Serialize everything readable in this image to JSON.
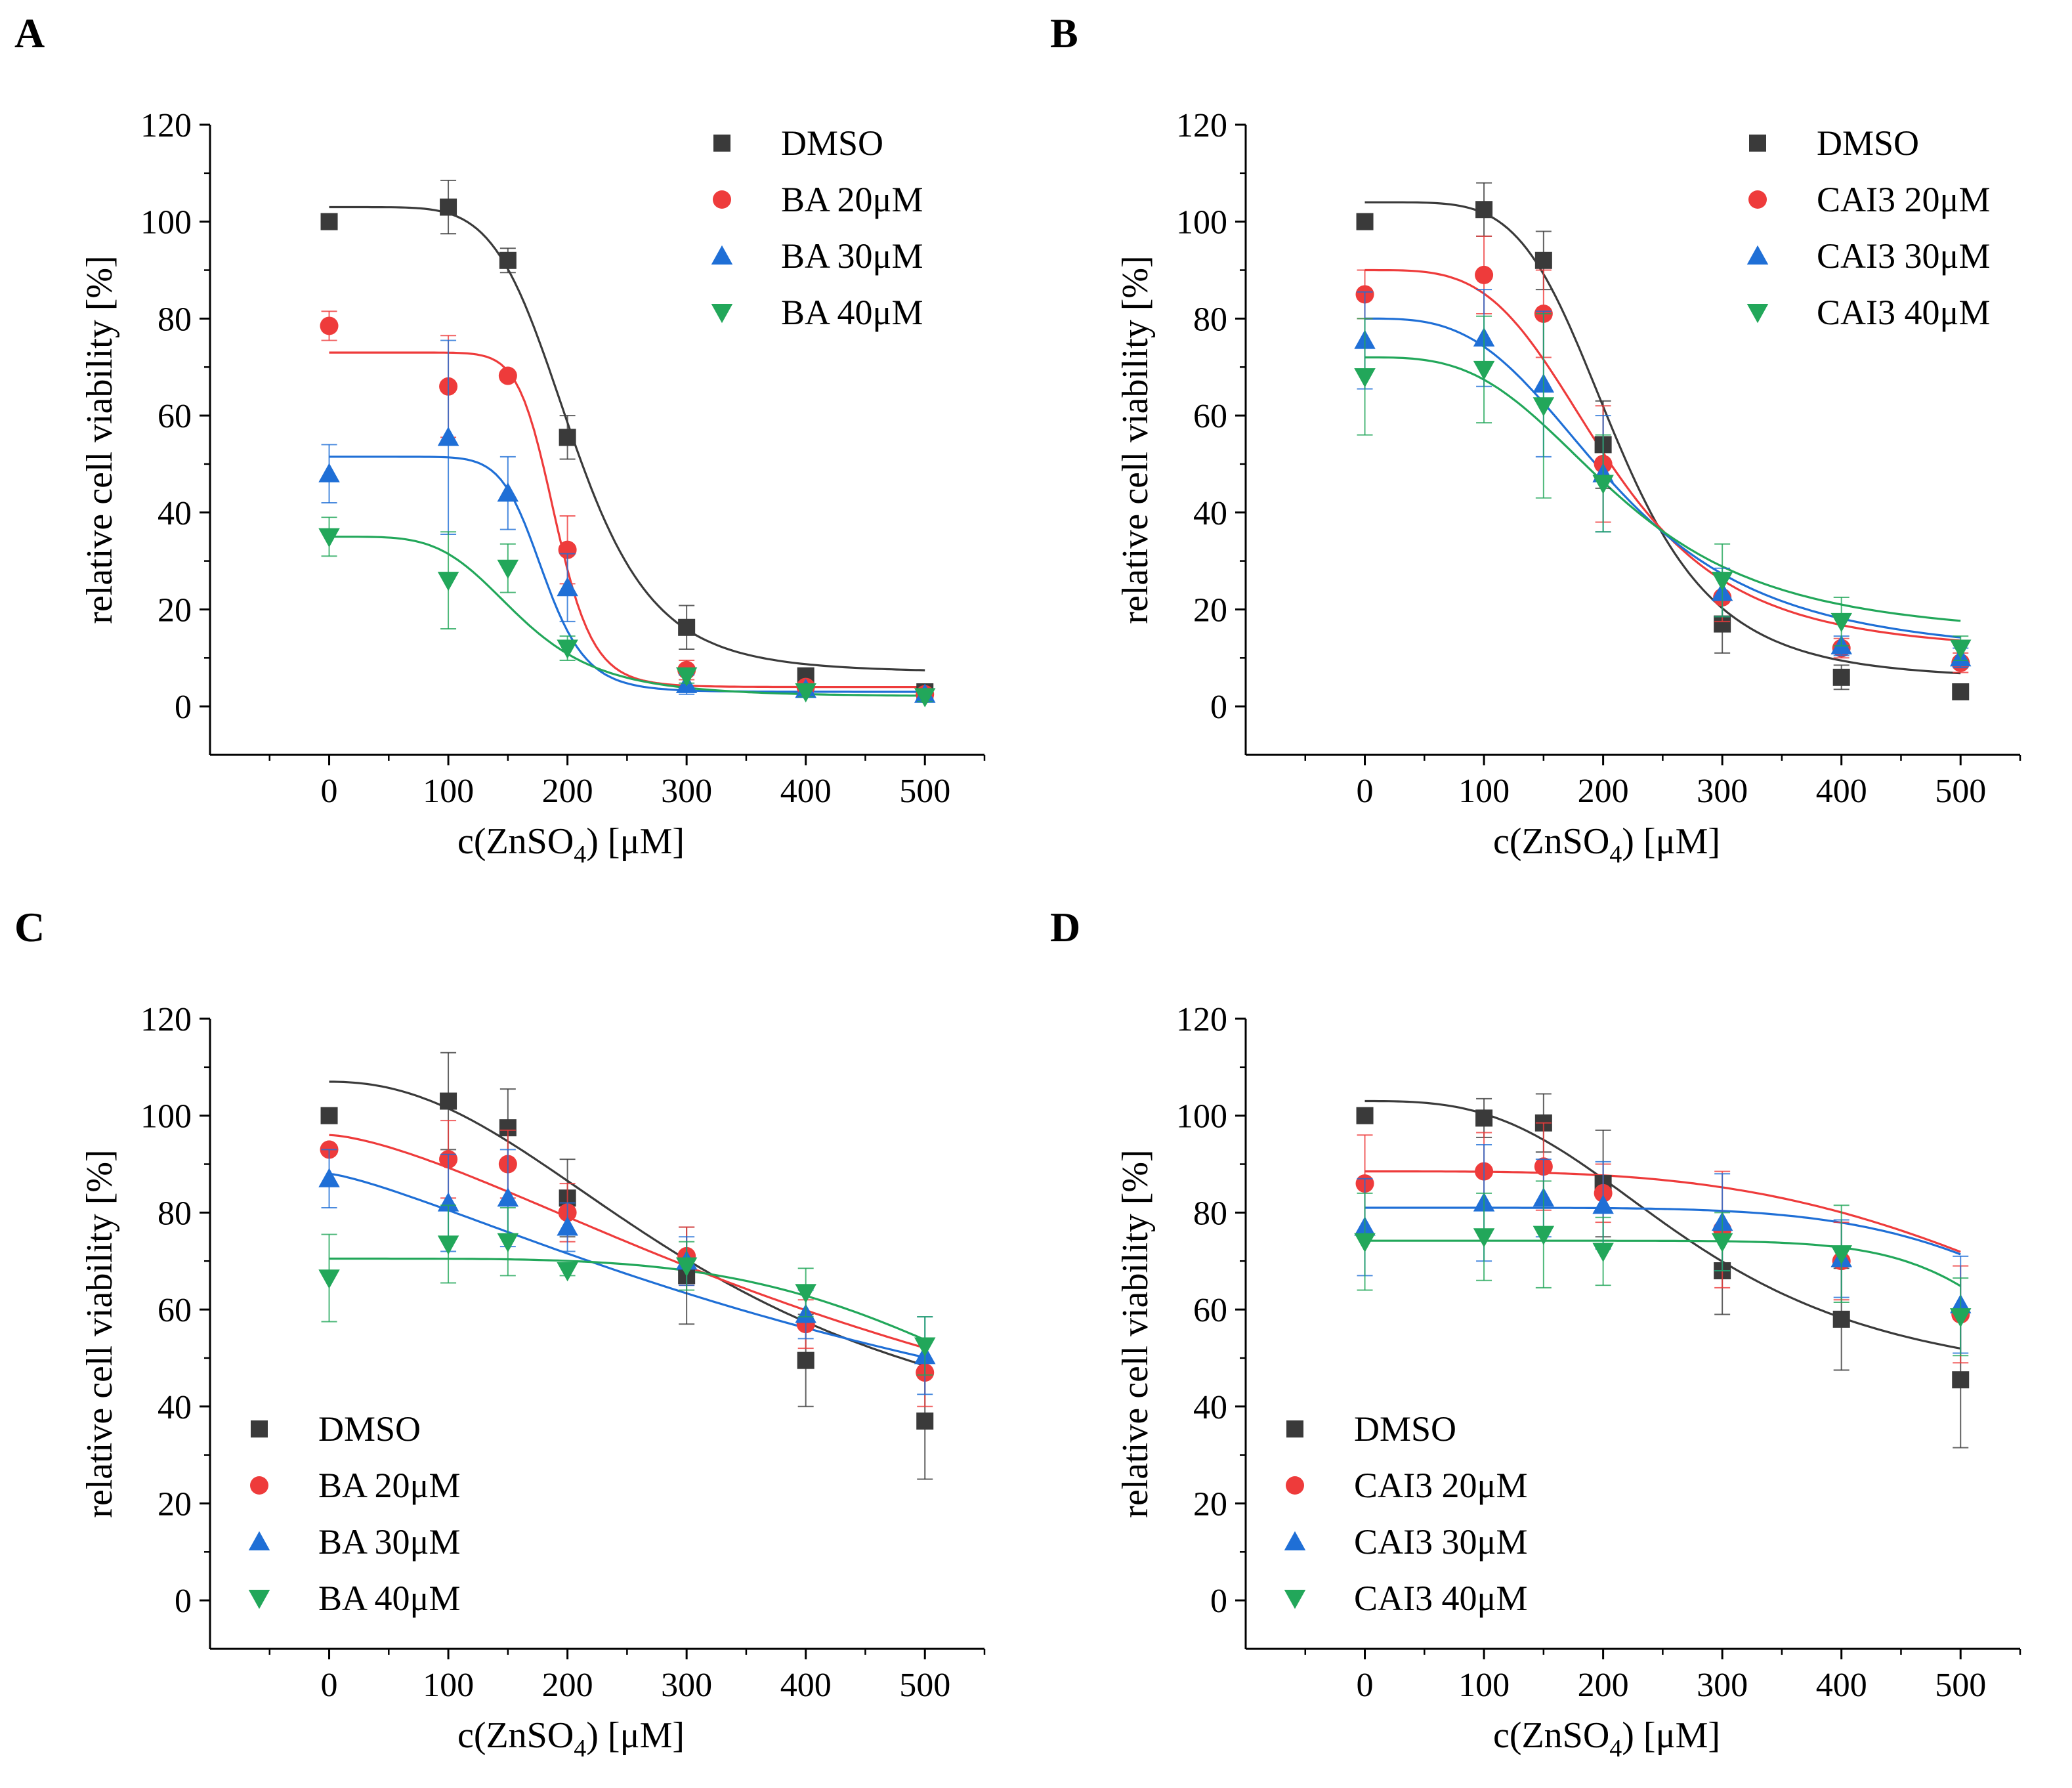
{
  "figure": {
    "panel_labels": [
      "A",
      "B",
      "C",
      "D"
    ]
  },
  "colors": {
    "DMSO": "#3a3a3a",
    "20": "#ee3b3b",
    "30": "#1f6fd6",
    "40": "#22a75a"
  },
  "chart_data": [
    {
      "panel": "A",
      "type": "scatter",
      "xlabel_main": "c(ZnSO",
      "xlabel_sub": "4",
      "xlabel_end": ") [μM]",
      "ylabel": "relative cell viability [%]",
      "xlim": [
        -100,
        550
      ],
      "ylim": [
        -10,
        120
      ],
      "xticks": [
        0,
        100,
        200,
        300,
        400,
        500
      ],
      "yticks": [
        0,
        20,
        40,
        60,
        80,
        100,
        120
      ],
      "legend_position": "top-right",
      "series": [
        {
          "name": "DMSO",
          "marker": "square",
          "color": "#3a3a3a",
          "x": [
            0,
            100,
            150,
            200,
            300,
            400,
            500
          ],
          "y": [
            100,
            103,
            92,
            55.5,
            16.3,
            6.3,
            3
          ],
          "err": [
            0,
            5.5,
            2.5,
            4.5,
            4.5,
            1.5,
            1
          ],
          "fit": {
            "top": 103,
            "bottom": 7,
            "ec50": 205,
            "slope": 6
          }
        },
        {
          "name": "BA 20μM",
          "marker": "circle",
          "color": "#ee3b3b",
          "x": [
            0,
            100,
            150,
            200,
            300,
            400,
            500
          ],
          "y": [
            78.5,
            66,
            68.2,
            32.3,
            7.5,
            4,
            2.5
          ],
          "err": [
            3,
            10.5,
            0.5,
            7,
            2,
            1,
            1
          ],
          "fit": {
            "top": 73,
            "bottom": 4,
            "ec50": 190,
            "slope": 12
          }
        },
        {
          "name": "BA 30μM",
          "marker": "triangle-up",
          "color": "#1f6fd6",
          "x": [
            0,
            100,
            150,
            200,
            300,
            400,
            500
          ],
          "y": [
            48,
            55.5,
            44,
            24.5,
            4.5,
            3.5,
            2.5
          ],
          "err": [
            6,
            20,
            7.5,
            7,
            2,
            1,
            1
          ],
          "fit": {
            "top": 51.5,
            "bottom": 3,
            "ec50": 180,
            "slope": 10
          }
        },
        {
          "name": "BA 40μM",
          "marker": "triangle-down",
          "color": "#22a75a",
          "x": [
            0,
            100,
            150,
            200,
            300,
            400,
            500
          ],
          "y": [
            35,
            26,
            28.5,
            12,
            6.3,
            3,
            2
          ],
          "err": [
            4,
            10,
            5,
            2.5,
            1.5,
            1,
            1
          ],
          "fit": {
            "top": 35,
            "bottom": 2,
            "ec50": 160,
            "slope": 4.5
          }
        }
      ]
    },
    {
      "panel": "B",
      "type": "scatter",
      "xlabel_main": "c(ZnSO",
      "xlabel_sub": "4",
      "xlabel_end": ") [μM]",
      "ylabel": "relative cell viability [%]",
      "xlim": [
        -100,
        550
      ],
      "ylim": [
        -10,
        120
      ],
      "xticks": [
        0,
        100,
        200,
        300,
        400,
        500
      ],
      "yticks": [
        0,
        20,
        40,
        60,
        80,
        100,
        120
      ],
      "legend_position": "top-right",
      "series": [
        {
          "name": "DMSO",
          "marker": "square",
          "color": "#3a3a3a",
          "x": [
            0,
            100,
            150,
            200,
            300,
            400,
            500
          ],
          "y": [
            100,
            102.5,
            92,
            54,
            17,
            6,
            3
          ],
          "err": [
            0,
            5.5,
            6,
            9,
            6,
            2.5,
            1.5
          ],
          "fit": {
            "top": 104,
            "bottom": 5.5,
            "ec50": 212,
            "slope": 5
          }
        },
        {
          "name": "CAI3 20μM",
          "marker": "circle",
          "color": "#ee3b3b",
          "x": [
            0,
            100,
            150,
            200,
            300,
            400,
            500
          ],
          "y": [
            85,
            89,
            81,
            50,
            22.5,
            12,
            9
          ],
          "err": [
            5,
            8,
            9,
            12,
            5,
            2,
            2
          ],
          "fit": {
            "top": 90,
            "bottom": 11,
            "ec50": 205,
            "slope": 3.8
          }
        },
        {
          "name": "CAI3 30μM",
          "marker": "triangle-up",
          "color": "#1f6fd6",
          "x": [
            0,
            100,
            150,
            200,
            300,
            400,
            500
          ],
          "y": [
            75.5,
            76,
            66.5,
            48,
            23.5,
            12.5,
            10
          ],
          "err": [
            10,
            10,
            15,
            12,
            5,
            2,
            2
          ],
          "fit": {
            "top": 80,
            "bottom": 10,
            "ec50": 212,
            "slope": 3.2
          }
        },
        {
          "name": "CAI3 40μM",
          "marker": "triangle-down",
          "color": "#22a75a",
          "x": [
            0,
            100,
            150,
            200,
            300,
            400,
            500
          ],
          "y": [
            68,
            69.5,
            62,
            46,
            26,
            17.5,
            12
          ],
          "err": [
            12,
            11,
            19,
            10,
            7.5,
            5,
            2.5
          ],
          "fit": {
            "top": 72,
            "bottom": 14,
            "ec50": 215,
            "slope": 3.2
          }
        }
      ]
    },
    {
      "panel": "C",
      "type": "scatter",
      "xlabel_main": "c(ZnSO",
      "xlabel_sub": "4",
      "xlabel_end": ") [μM]",
      "ylabel": "relative cell viability [%]",
      "xlim": [
        -100,
        550
      ],
      "ylim": [
        -10,
        120
      ],
      "xticks": [
        0,
        100,
        200,
        300,
        400,
        500
      ],
      "yticks": [
        0,
        20,
        40,
        60,
        80,
        100,
        120
      ],
      "legend_position": "bottom-left",
      "series": [
        {
          "name": "DMSO",
          "marker": "square",
          "color": "#3a3a3a",
          "x": [
            0,
            100,
            150,
            200,
            300,
            400,
            500
          ],
          "y": [
            100,
            103,
            97.5,
            83,
            67,
            49.5,
            37
          ],
          "err": [
            0,
            10,
            8,
            8,
            10,
            9.5,
            12
          ],
          "fit": {
            "top": 107,
            "bottom": 25,
            "ec50": 330,
            "slope": 2.2
          }
        },
        {
          "name": "BA 20μM",
          "marker": "circle",
          "color": "#ee3b3b",
          "x": [
            0,
            100,
            150,
            200,
            300,
            400,
            500
          ],
          "y": [
            93,
            91,
            90,
            80,
            71,
            57,
            47
          ],
          "err": [
            0,
            8,
            7,
            6,
            6,
            5,
            7
          ],
          "fit": {
            "top": 96,
            "bottom": 0,
            "ec50": 560,
            "slope": 1.5
          }
        },
        {
          "name": "BA 30μM",
          "marker": "triangle-up",
          "color": "#1f6fd6",
          "x": [
            0,
            100,
            150,
            200,
            300,
            400,
            500
          ],
          "y": [
            87,
            82,
            83,
            77,
            70,
            59,
            50.5
          ],
          "err": [
            6,
            10,
            10,
            5,
            5,
            5,
            8
          ],
          "fit": {
            "top": 88,
            "bottom": 0,
            "ec50": 620,
            "slope": 1.3
          }
        },
        {
          "name": "BA 40μM",
          "marker": "triangle-down",
          "color": "#22a75a",
          "x": [
            0,
            100,
            150,
            200,
            300,
            400,
            500
          ],
          "y": [
            66.5,
            73.5,
            74,
            68,
            69,
            63.5,
            52.5
          ],
          "err": [
            9,
            8,
            7,
            1,
            5,
            5,
            6
          ],
          "fit": {
            "top": 70.5,
            "bottom": 0,
            "ec50": 660,
            "slope": 4.2
          }
        }
      ]
    },
    {
      "panel": "D",
      "type": "scatter",
      "xlabel_main": "c(ZnSO",
      "xlabel_sub": "4",
      "xlabel_end": ") [μM]",
      "ylabel": "relative cell viability [%]",
      "xlim": [
        -100,
        550
      ],
      "ylim": [
        -10,
        120
      ],
      "xticks": [
        0,
        100,
        200,
        300,
        400,
        500
      ],
      "yticks": [
        0,
        20,
        40,
        60,
        80,
        100,
        120
      ],
      "legend_position": "bottom-left",
      "series": [
        {
          "name": "DMSO",
          "marker": "square",
          "color": "#3a3a3a",
          "x": [
            0,
            100,
            150,
            200,
            300,
            400,
            500
          ],
          "y": [
            100,
            99.5,
            98.5,
            86,
            68,
            58,
            45.5
          ],
          "err": [
            0,
            4,
            6,
            11,
            9,
            10.5,
            14
          ],
          "fit": {
            "top": 103,
            "bottom": 43,
            "ec50": 280,
            "slope": 3
          }
        },
        {
          "name": "CAI3 20μM",
          "marker": "circle",
          "color": "#ee3b3b",
          "x": [
            0,
            100,
            150,
            200,
            300,
            400,
            500
          ],
          "y": [
            86,
            88.5,
            89.5,
            84,
            76.5,
            70,
            59
          ],
          "err": [
            10,
            8,
            9,
            6,
            12,
            8,
            10
          ],
          "fit": {
            "top": 88.5,
            "bottom": 0,
            "ec50": 760,
            "slope": 3.5
          }
        },
        {
          "name": "CAI3 30μM",
          "marker": "triangle-up",
          "color": "#1f6fd6",
          "x": [
            0,
            100,
            150,
            200,
            300,
            400,
            500
          ],
          "y": [
            77,
            82,
            83,
            81.5,
            78,
            70.5,
            61
          ],
          "err": [
            10,
            12,
            8,
            9,
            10,
            8,
            10
          ],
          "fit": {
            "top": 81,
            "bottom": 0,
            "ec50": 720,
            "slope": 5.5
          }
        },
        {
          "name": "CAI3 40μM",
          "marker": "triangle-down",
          "color": "#22a75a",
          "x": [
            0,
            100,
            150,
            200,
            300,
            400,
            500
          ],
          "y": [
            74,
            75,
            75.5,
            72,
            74,
            71.5,
            58.5
          ],
          "err": [
            10,
            9,
            11,
            7,
            6,
            10,
            8
          ],
          "fit": {
            "top": 74.2,
            "bottom": 0,
            "ec50": 620,
            "slope": 9
          }
        }
      ]
    }
  ]
}
